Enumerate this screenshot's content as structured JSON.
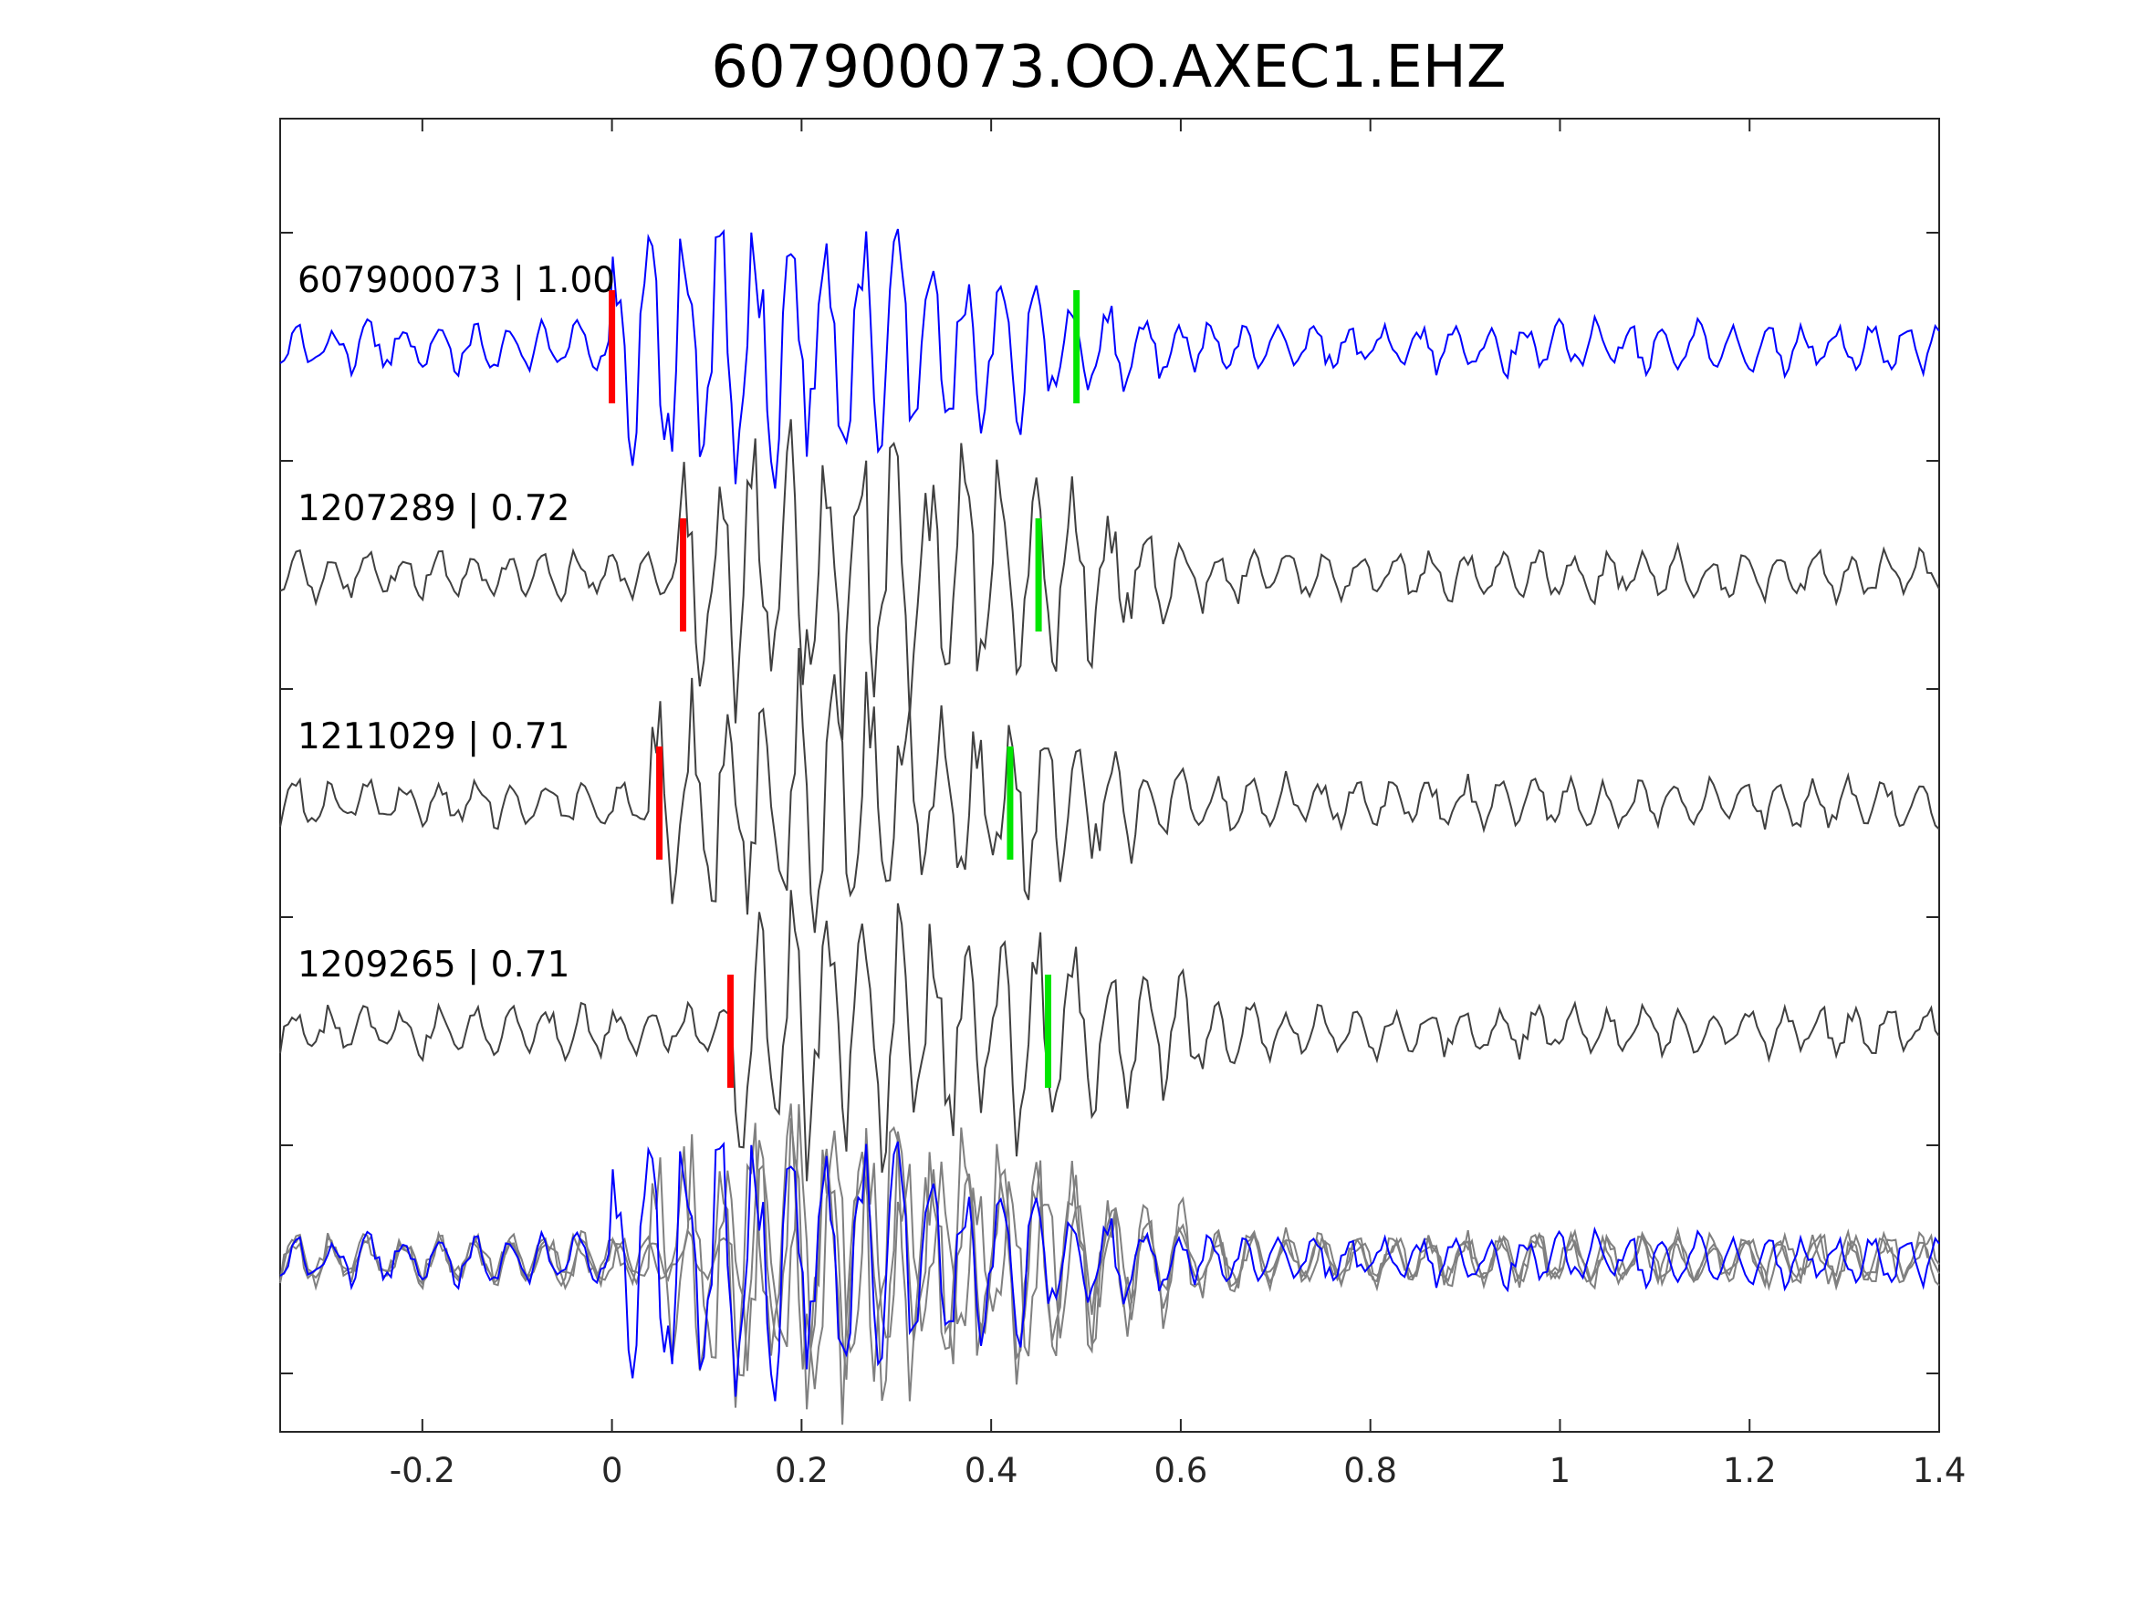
{
  "chart_data": {
    "type": "line",
    "title": "607900073.OO.AXEC1.EHZ",
    "xlabel": "",
    "ylabel": "",
    "xlim": [
      -0.35,
      1.4
    ],
    "xticks": [
      -0.2,
      0,
      0.2,
      0.4,
      0.6,
      0.8,
      1,
      1.2,
      1.4
    ],
    "xtick_labels": [
      "-0.2",
      "0",
      "0.2",
      "0.4",
      "0.6",
      "0.8",
      "1",
      "1.2",
      "1.4"
    ],
    "grid": false,
    "legend": "none",
    "colors": {
      "reference": "#0000ff",
      "match": "#404040",
      "overlay_match": "#808080",
      "p_pick": "#ff0000",
      "s_pick": "#00e600"
    },
    "series": [
      {
        "label": "607900073 | 1.00",
        "id": "607900073",
        "correlation": 1.0,
        "p_pick": 0.0,
        "s_pick": 0.49,
        "onset": 0.0,
        "peak_amplitude": 1.0
      },
      {
        "label": "1207289 | 0.72",
        "id": "1207289",
        "correlation": 0.72,
        "p_pick": 0.075,
        "s_pick": 0.45,
        "onset": 0.07,
        "peak_amplitude": 1.05
      },
      {
        "label": "1211029 | 0.71",
        "id": "1211029",
        "correlation": 0.71,
        "p_pick": 0.05,
        "s_pick": 0.42,
        "onset": 0.04,
        "peak_amplitude": 0.95
      },
      {
        "label": "1209265 | 0.71",
        "id": "1209265",
        "correlation": 0.71,
        "p_pick": 0.125,
        "s_pick": 0.46,
        "onset": 0.12,
        "peak_amplitude": 1.0
      }
    ],
    "overlay": {
      "description_visible": false,
      "traces": [
        "607900073",
        "1207289",
        "1211029",
        "1209265"
      ]
    }
  }
}
